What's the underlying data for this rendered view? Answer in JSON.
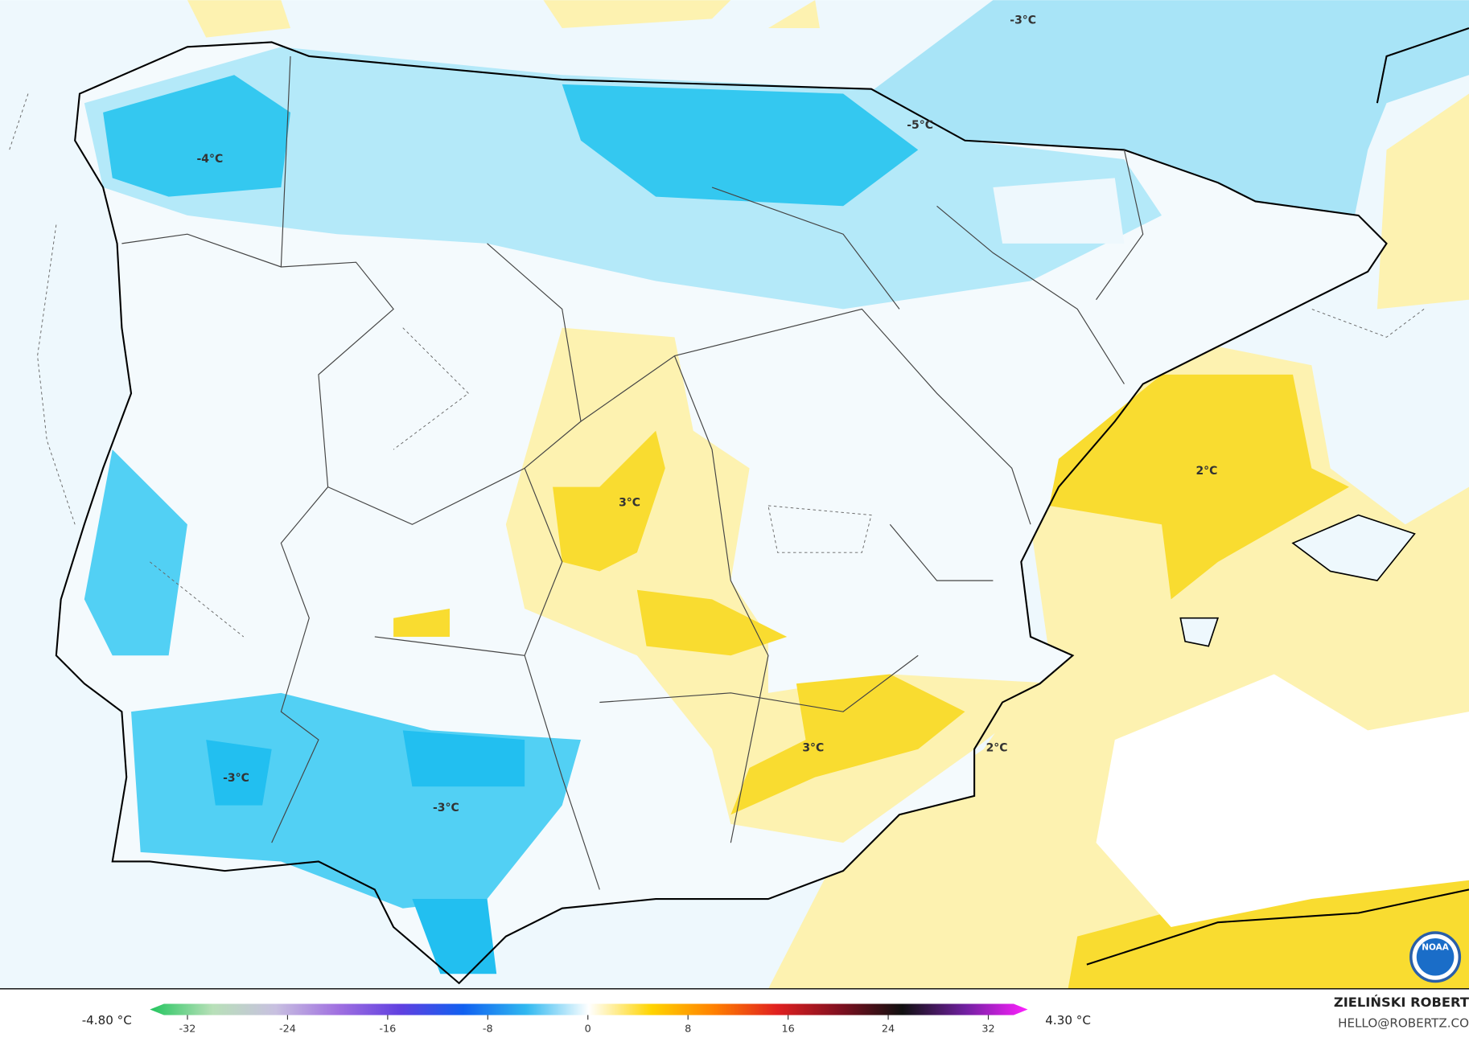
{
  "map": {
    "contour_labels": [
      "-3°C",
      "-4°C",
      "-5°C",
      "3°C",
      "2°C",
      "-3°C",
      "-3°C",
      "3°C",
      "2°C"
    ],
    "colorbar": {
      "min_label": "-4.80 °C",
      "max_label": "4.30 °C",
      "lim": [
        -35,
        35
      ],
      "ticks": [
        -32,
        -24,
        -16,
        -8,
        0,
        8,
        16,
        24,
        32
      ],
      "colors": [
        "#22c55e",
        "#b8e0b8",
        "#c8c0e0",
        "#a070e0",
        "#6040e0",
        "#1060f0",
        "#30b8f0",
        "#ffffff",
        "#ffd400",
        "#ff8000",
        "#e02020",
        "#801020",
        "#101010",
        "#7020a0",
        "#ff20ff"
      ]
    },
    "author": "ZIELIŃSKI ROBERT",
    "email": "HELLO@ROBERTZ.CO",
    "logo": "NOAA"
  }
}
